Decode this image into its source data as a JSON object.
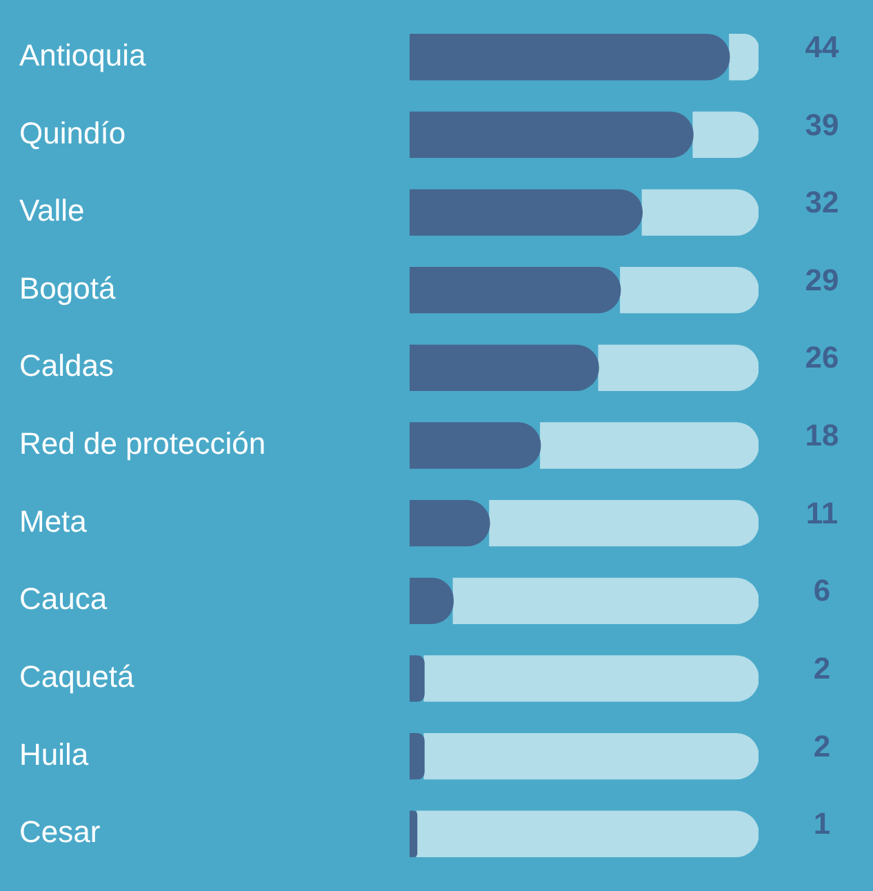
{
  "chart_data": {
    "type": "bar",
    "orientation": "horizontal",
    "categories": [
      "Antioquia",
      "Quindío",
      "Valle",
      "Bogotá",
      "Caldas",
      "Red de protección",
      "Meta",
      "Cauca",
      "Caquetá",
      "Huila",
      "Cesar"
    ],
    "series": [
      {
        "color": "#46668f",
        "values": [
          44,
          39,
          32,
          29,
          26,
          18,
          11,
          6,
          2,
          2,
          1
        ],
        "value_labels": [
          "44",
          "39",
          "32",
          "29",
          "26",
          "18",
          "11",
          "6",
          "2",
          "2",
          "1"
        ]
      },
      {
        "color": "#b3dde9",
        "values": [
          4,
          9,
          16,
          19,
          22,
          30,
          37,
          42,
          46,
          46,
          47
        ]
      }
    ],
    "xlim": [
      0,
      48
    ],
    "stacked": true,
    "tick_labels": "y",
    "legend": false
  }
}
